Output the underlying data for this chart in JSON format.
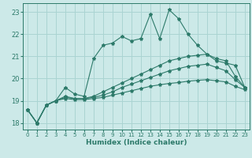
{
  "xlabel": "Humidex (Indice chaleur)",
  "bg_color": "#cce9e8",
  "grid_color": "#aad4d2",
  "line_color": "#2d7a6a",
  "ylim": [
    17.7,
    23.4
  ],
  "xlim": [
    -0.5,
    23.5
  ],
  "yticks": [
    18,
    19,
    20,
    21,
    22,
    23
  ],
  "xticks": [
    0,
    1,
    2,
    3,
    4,
    5,
    6,
    7,
    8,
    9,
    10,
    11,
    12,
    13,
    14,
    15,
    16,
    17,
    18,
    19,
    20,
    21,
    22,
    23
  ],
  "series": [
    [
      18.6,
      18.0,
      18.8,
      19.0,
      19.6,
      19.3,
      19.2,
      20.9,
      21.5,
      21.6,
      21.9,
      21.7,
      21.8,
      22.9,
      21.8,
      23.1,
      22.7,
      22.0,
      21.5,
      21.1,
      20.8,
      20.7,
      20.6,
      19.6
    ],
    [
      18.6,
      18.0,
      18.8,
      19.0,
      19.2,
      19.1,
      19.1,
      19.2,
      19.4,
      19.6,
      19.8,
      20.0,
      20.2,
      20.4,
      20.6,
      20.8,
      20.9,
      21.0,
      21.05,
      21.1,
      20.9,
      20.8,
      20.1,
      19.6
    ],
    [
      18.6,
      18.0,
      18.8,
      19.0,
      19.15,
      19.1,
      19.1,
      19.15,
      19.25,
      19.4,
      19.6,
      19.75,
      19.9,
      20.05,
      20.2,
      20.35,
      20.45,
      20.55,
      20.6,
      20.65,
      20.5,
      20.35,
      19.95,
      19.6
    ],
    [
      18.6,
      18.0,
      18.8,
      19.0,
      19.1,
      19.05,
      19.05,
      19.1,
      19.15,
      19.25,
      19.35,
      19.45,
      19.55,
      19.65,
      19.72,
      19.78,
      19.82,
      19.88,
      19.92,
      19.95,
      19.9,
      19.85,
      19.65,
      19.5
    ]
  ]
}
